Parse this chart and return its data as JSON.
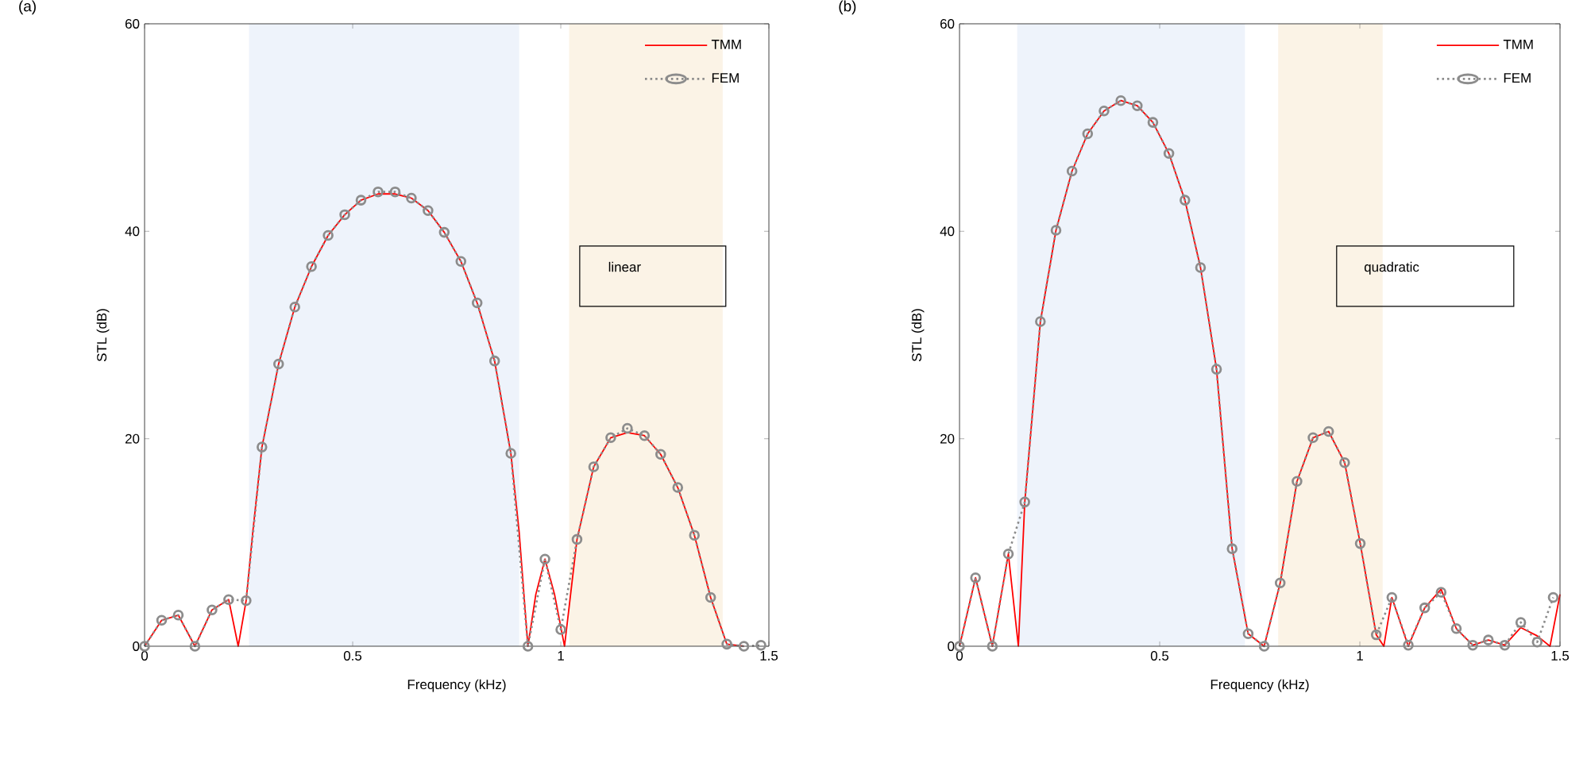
{
  "chart_data": [
    {
      "type": "line",
      "title": "(a)",
      "xlabel": "Frequency (kHz)",
      "ylabel": "STL (dB)",
      "xlim": [
        0,
        1.5
      ],
      "xticks": [
        0,
        0.5,
        1,
        1.5
      ],
      "ylim": [
        0,
        60
      ],
      "yticks": [
        0,
        20,
        40,
        60
      ],
      "legend": "top right",
      "annotations": [
        "linear"
      ],
      "bands": [
        {
          "axis": "x",
          "from": 0.251,
          "to": 0.9,
          "color": "#eef3fb"
        },
        {
          "axis": "x",
          "from": 1.02,
          "to": 1.389,
          "color": "#fbf3e6"
        }
      ],
      "series": [
        {
          "name": "TMM",
          "color": "#ff0000",
          "marker": "none",
          "line_style": "solid",
          "x": [
            0,
            0.041,
            0.081,
            0.121,
            0.162,
            0.202,
            0.225,
            0.244,
            0.26,
            0.282,
            0.322,
            0.361,
            0.401,
            0.441,
            0.481,
            0.52,
            0.561,
            0.602,
            0.641,
            0.681,
            0.72,
            0.76,
            0.799,
            0.841,
            0.88,
            0.9,
            0.921,
            0.94,
            0.962,
            0.985,
            1.009,
            1.039,
            1.079,
            1.12,
            1.16,
            1.201,
            1.24,
            1.281,
            1.321,
            1.36,
            1.399,
            1.44
          ],
          "values": [
            0,
            2.5,
            3,
            0,
            3.5,
            4.5,
            0,
            4.4,
            11,
            19.2,
            27.2,
            32.7,
            36.6,
            39.6,
            41.6,
            43,
            43.6,
            43.6,
            43.2,
            42,
            39.9,
            37.1,
            33.1,
            27.5,
            18.6,
            11,
            0,
            5,
            8.4,
            5,
            0,
            10.3,
            17.3,
            20.1,
            20.6,
            20.3,
            18.5,
            15.3,
            10.7,
            4.7,
            0.2,
            0
          ]
        },
        {
          "name": "FEM",
          "color": "#8c8c8c",
          "marker": "circle",
          "line_style": "dotted",
          "x": [
            0,
            0.041,
            0.081,
            0.121,
            0.162,
            0.202,
            0.244,
            0.282,
            0.322,
            0.361,
            0.401,
            0.441,
            0.481,
            0.52,
            0.561,
            0.602,
            0.641,
            0.681,
            0.72,
            0.76,
            0.799,
            0.841,
            0.88,
            0.921,
            0.962,
            1.0,
            1.039,
            1.079,
            1.12,
            1.16,
            1.201,
            1.24,
            1.281,
            1.321,
            1.36,
            1.399,
            1.44,
            1.481
          ],
          "values": [
            0,
            2.5,
            3,
            0,
            3.5,
            4.5,
            4.4,
            19.2,
            27.2,
            32.7,
            36.6,
            39.6,
            41.6,
            43,
            43.8,
            43.8,
            43.2,
            42,
            39.9,
            37.1,
            33.1,
            27.5,
            18.6,
            0,
            8.4,
            1.6,
            10.3,
            17.3,
            20.1,
            21,
            20.3,
            18.5,
            15.3,
            10.7,
            4.7,
            0.2,
            0,
            0.1
          ]
        }
      ]
    },
    {
      "type": "line",
      "title": "(b)",
      "xlabel": "Frequency (kHz)",
      "ylabel": "STL (dB)",
      "xlim": [
        0,
        1.5
      ],
      "xticks": [
        0,
        0.5,
        1,
        1.5
      ],
      "ylim": [
        0,
        60
      ],
      "yticks": [
        0,
        20,
        40,
        60
      ],
      "legend": "top right",
      "annotations": [
        "quadratic"
      ],
      "bands": [
        {
          "axis": "x",
          "from": 0.144,
          "to": 0.713,
          "color": "#eef3fb"
        },
        {
          "axis": "x",
          "from": 0.796,
          "to": 1.057,
          "color": "#fbf3e6"
        }
      ],
      "series": [
        {
          "name": "TMM",
          "color": "#ff0000",
          "marker": "none",
          "line_style": "solid",
          "x": [
            0,
            0.04,
            0.082,
            0.122,
            0.147,
            0.163,
            0.202,
            0.241,
            0.281,
            0.32,
            0.361,
            0.403,
            0.444,
            0.483,
            0.523,
            0.563,
            0.602,
            0.642,
            0.681,
            0.721,
            0.761,
            0.801,
            0.843,
            0.883,
            0.922,
            0.962,
            1.001,
            1.041,
            1.06,
            1.08,
            1.121,
            1.162,
            1.203,
            1.241,
            1.282,
            1.321,
            1.362,
            1.402,
            1.443,
            1.475,
            1.5
          ],
          "values": [
            0,
            6.6,
            0,
            8.9,
            0,
            13.9,
            31.3,
            40.1,
            45.8,
            49.4,
            51.6,
            52.6,
            52.1,
            50.5,
            47.5,
            43,
            36.5,
            26.7,
            9.4,
            1.2,
            0,
            6.1,
            15.9,
            20.1,
            20.7,
            17.7,
            9.9,
            1.1,
            0,
            4.7,
            0,
            3.7,
            5.5,
            1.7,
            0.1,
            0.6,
            0.1,
            1.8,
            1,
            0,
            5
          ]
        },
        {
          "name": "FEM",
          "color": "#8c8c8c",
          "marker": "circle",
          "line_style": "dotted",
          "x": [
            0,
            0.04,
            0.082,
            0.122,
            0.163,
            0.202,
            0.241,
            0.281,
            0.32,
            0.361,
            0.403,
            0.444,
            0.483,
            0.523,
            0.563,
            0.602,
            0.642,
            0.681,
            0.721,
            0.761,
            0.801,
            0.843,
            0.883,
            0.922,
            0.962,
            1.001,
            1.041,
            1.08,
            1.121,
            1.162,
            1.203,
            1.241,
            1.282,
            1.321,
            1.362,
            1.402,
            1.443,
            1.483
          ],
          "values": [
            0,
            6.6,
            0,
            8.9,
            13.9,
            31.3,
            40.1,
            45.8,
            49.4,
            51.6,
            52.6,
            52.1,
            50.5,
            47.5,
            43,
            36.5,
            26.7,
            9.4,
            1.2,
            0,
            6.1,
            15.9,
            20.1,
            20.7,
            17.7,
            9.9,
            1.1,
            4.7,
            0.1,
            3.7,
            5.2,
            1.7,
            0.1,
            0.6,
            0.1,
            2.3,
            0.4,
            4.7
          ]
        }
      ]
    }
  ]
}
